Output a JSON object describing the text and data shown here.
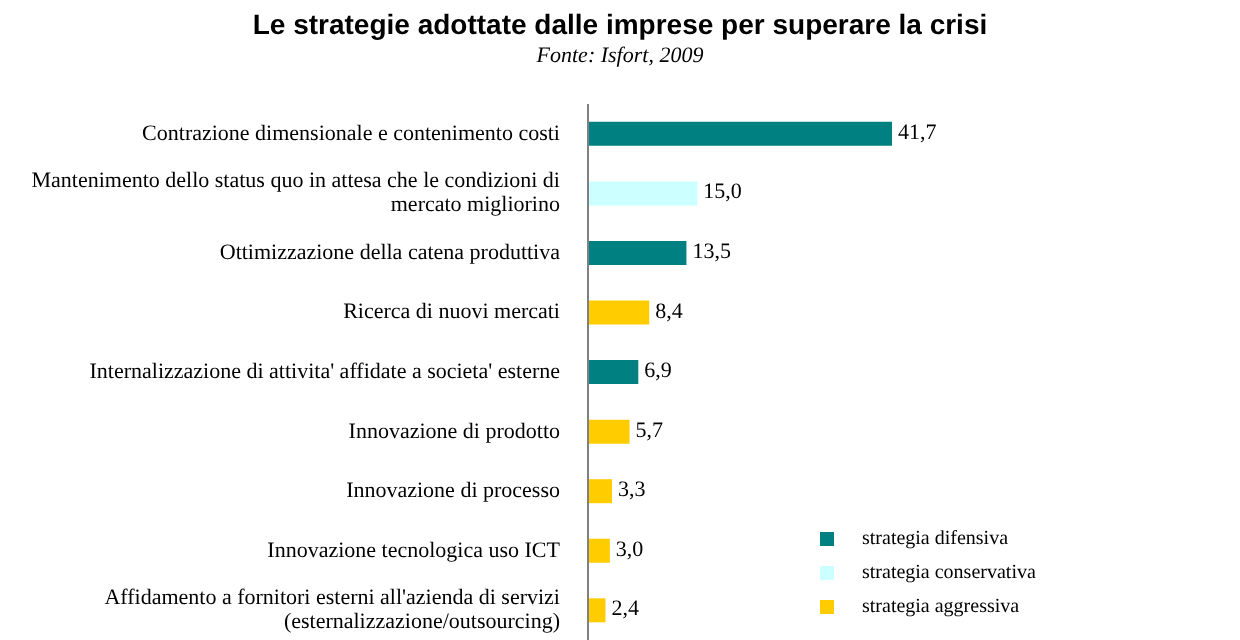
{
  "chart_data": {
    "type": "bar",
    "orientation": "horizontal",
    "stacked": true,
    "title": "Le strategie adottate dalle imprese per superare la crisi",
    "subtitle": "Fonte: Isfort, 2009",
    "categories": [
      "Contrazione dimensionale e contenimento costi",
      "Mantenimento dello status quo in attesa che le condizioni di mercato migliorino",
      "Ottimizzazione della catena produttiva",
      "Ricerca di nuovi mercati",
      "Internalizzazione di attivita' affidate a societa' esterne",
      "Innovazione di prodotto",
      "Innovazione di processo",
      "Innovazione tecnologica uso ICT",
      "Affidamento a fornitori esterni all'azienda di servizi (esternalizzazione/outsourcing)"
    ],
    "series": [
      {
        "name": "strategia difensiva",
        "color": "#008080",
        "values": [
          41.7,
          null,
          13.5,
          null,
          6.9,
          null,
          null,
          null,
          null
        ],
        "value_labels": [
          "41,7",
          null,
          "13,5",
          null,
          "6,9",
          null,
          null,
          null,
          null
        ]
      },
      {
        "name": "strategia conservativa",
        "color": "#ccffff",
        "values": [
          null,
          15.0,
          null,
          null,
          null,
          null,
          null,
          null,
          null
        ],
        "value_labels": [
          null,
          "15,0",
          null,
          null,
          null,
          null,
          null,
          null,
          null
        ]
      },
      {
        "name": "strategia aggressiva",
        "color": "#ffcc00",
        "values": [
          null,
          null,
          null,
          8.4,
          null,
          5.7,
          3.3,
          3.0,
          2.4
        ],
        "value_labels": [
          null,
          null,
          null,
          "8,4",
          null,
          "5,7",
          "3,3",
          "3,0",
          "2,4"
        ]
      }
    ],
    "legend": "bottom right"
  }
}
